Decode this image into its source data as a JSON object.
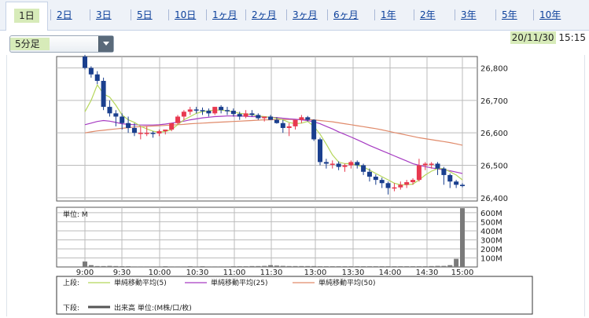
{
  "tabs": {
    "items": [
      "1日",
      "2日",
      "3日",
      "5日",
      "10日",
      "1ヶ月",
      "2ヶ月",
      "3ヶ月",
      "6ヶ月",
      "1年",
      "2年",
      "3年",
      "5年",
      "10年"
    ],
    "active_index": 0
  },
  "interval_select": {
    "value": "5分足"
  },
  "timestamp": {
    "date": "20/11/30",
    "time": "15:15"
  },
  "colors": {
    "up": "#e8394f",
    "down": "#1a3f8e",
    "ma5": "#b5d65a",
    "ma25": "#a63bc2",
    "ma50": "#e08a6a",
    "volume": "#7a7a7a"
  },
  "chart_data": [
    {
      "type": "candlestick",
      "title": "",
      "x": [
        "9:00",
        "9:05",
        "9:10",
        "9:15",
        "9:20",
        "9:25",
        "9:30",
        "9:35",
        "9:40",
        "9:45",
        "9:50",
        "9:55",
        "10:00",
        "10:05",
        "10:10",
        "10:15",
        "10:20",
        "10:25",
        "10:30",
        "10:35",
        "10:40",
        "10:45",
        "10:50",
        "10:55",
        "11:00",
        "11:05",
        "11:10",
        "11:15",
        "11:20",
        "11:25",
        "11:30",
        "12:30",
        "12:35",
        "12:40",
        "12:45",
        "12:50",
        "12:55",
        "13:00",
        "13:05",
        "13:10",
        "13:15",
        "13:20",
        "13:25",
        "13:30",
        "13:35",
        "13:40",
        "13:45",
        "13:50",
        "13:55",
        "14:00",
        "14:05",
        "14:10",
        "14:15",
        "14:20",
        "14:25",
        "14:30",
        "14:35",
        "14:40",
        "14:45",
        "14:50",
        "14:55",
        "15:00"
      ],
      "x_ticks": [
        "9:00",
        "9:30",
        "10:00",
        "10:30",
        "11:00",
        "11:30",
        "13:00",
        "13:30",
        "14:00",
        "14:30",
        "15:00"
      ],
      "y_ticks": [
        "26,400",
        "26,500",
        "26,600",
        "26,700",
        "26,800"
      ],
      "ylim": [
        26390,
        26835
      ],
      "open": [
        26835,
        26800,
        26780,
        26760,
        26680,
        26660,
        26650,
        26630,
        26615,
        26600,
        26600,
        26600,
        26598,
        26605,
        26610,
        26630,
        26650,
        26665,
        26672,
        26670,
        26668,
        26660,
        26680,
        26670,
        26668,
        26658,
        26650,
        26660,
        26655,
        26645,
        26650,
        26640,
        26630,
        26615,
        26620,
        26640,
        26648,
        26640,
        26580,
        26510,
        26505,
        26505,
        26495,
        26500,
        26510,
        26500,
        26480,
        26465,
        26455,
        26445,
        26430,
        26432,
        26440,
        26448,
        26455,
        26500,
        26505,
        26505,
        26490,
        26470,
        26450,
        26440
      ],
      "high": [
        26840,
        26805,
        26790,
        26770,
        26700,
        26670,
        26660,
        26650,
        26630,
        26620,
        26620,
        26605,
        26610,
        26610,
        26630,
        26655,
        26670,
        26680,
        26680,
        26678,
        26675,
        26680,
        26685,
        26680,
        26675,
        26665,
        26670,
        26670,
        26660,
        26650,
        26655,
        26648,
        26640,
        26630,
        26640,
        26655,
        26652,
        26642,
        26585,
        26520,
        26515,
        26512,
        26505,
        26515,
        26515,
        26505,
        26490,
        26472,
        26462,
        26450,
        26445,
        26450,
        26455,
        26460,
        26520,
        26510,
        26510,
        26510,
        26495,
        26475,
        26455,
        26445
      ],
      "low": [
        26795,
        26770,
        26750,
        26670,
        26650,
        26620,
        26610,
        26600,
        26590,
        26580,
        26590,
        26585,
        26590,
        26595,
        26605,
        26625,
        26640,
        26655,
        26660,
        26655,
        26650,
        26655,
        26660,
        26655,
        26650,
        26640,
        26645,
        26650,
        26640,
        26635,
        26640,
        26628,
        26600,
        26590,
        26610,
        26630,
        26635,
        26575,
        26500,
        26490,
        26490,
        26485,
        26480,
        26490,
        26490,
        26470,
        26450,
        26440,
        26430,
        26410,
        26420,
        26425,
        26430,
        26440,
        26450,
        26485,
        26490,
        26470,
        26440,
        26430,
        26430,
        26432
      ],
      "close": [
        26800,
        26780,
        26760,
        26680,
        26660,
        26650,
        26630,
        26615,
        26600,
        26600,
        26600,
        26598,
        26605,
        26610,
        26630,
        26650,
        26665,
        26672,
        26670,
        26668,
        26660,
        26680,
        26670,
        26668,
        26658,
        26650,
        26660,
        26655,
        26645,
        26650,
        26640,
        26630,
        26615,
        26620,
        26640,
        26648,
        26640,
        26580,
        26510,
        26505,
        26505,
        26495,
        26500,
        26510,
        26500,
        26480,
        26465,
        26455,
        26445,
        26430,
        26432,
        26440,
        26448,
        26455,
        26500,
        26505,
        26505,
        26490,
        26470,
        26450,
        26440,
        26436
      ],
      "ma5": [
        26665,
        26700,
        26748,
        26720,
        26710,
        26685,
        26655,
        26640,
        26632,
        26620,
        26612,
        26605,
        26602,
        26604,
        26610,
        26625,
        26640,
        26650,
        26660,
        26665,
        26668,
        26670,
        26670,
        26668,
        26665,
        26660,
        26658,
        26656,
        26652,
        26650,
        26648,
        26645,
        26640,
        26632,
        26628,
        26630,
        26635,
        26620,
        26596,
        26565,
        26532,
        26510,
        26505,
        26505,
        26500,
        26495,
        26485,
        26475,
        26465,
        26455,
        26445,
        26440,
        26440,
        26442,
        26455,
        26470,
        26482,
        26490,
        26490,
        26480,
        26470,
        26455
      ],
      "ma25": [
        26625,
        26630,
        26635,
        26638,
        26636,
        26632,
        26628,
        26626,
        26625,
        26624,
        26624,
        26624,
        26625,
        26627,
        26630,
        26633,
        26636,
        26640,
        26643,
        26646,
        26648,
        26650,
        26651,
        26652,
        26652,
        26652,
        26651,
        26650,
        26650,
        26649,
        26648,
        26647,
        26645,
        26643,
        26642,
        26640,
        26638,
        26634,
        26628,
        26620,
        26612,
        26603,
        26595,
        26587,
        26579,
        26570,
        26561,
        26553,
        26545,
        26537,
        26529,
        26521,
        26513,
        26505,
        26500,
        26496,
        26492,
        26489,
        26486,
        26483,
        26479,
        26475
      ],
      "ma50": [
        26600,
        26603,
        26606,
        26608,
        26610,
        26612,
        26614,
        26616,
        26618,
        26619,
        26620,
        26621,
        26622,
        26623,
        26624,
        26625,
        26626,
        26628,
        26629,
        26630,
        26631,
        26632,
        26633,
        26634,
        26635,
        26636,
        26637,
        26638,
        26639,
        26640,
        26640,
        26641,
        26641,
        26641,
        26641,
        26641,
        26641,
        26640,
        26638,
        26636,
        26634,
        26631,
        26628,
        26625,
        26622,
        26619,
        26616,
        26613,
        26609,
        26605,
        26601,
        26597,
        26593,
        26589,
        26585,
        26582,
        26579,
        26576,
        26573,
        26570,
        26566,
        26562
      ]
    },
    {
      "type": "bar",
      "title": "単位: M",
      "y_ticks": [
        "100M",
        "200M",
        "300M",
        "400M",
        "500M",
        "600M"
      ],
      "ylim": [
        0,
        660
      ],
      "values": [
        60,
        20,
        10,
        10,
        12,
        10,
        8,
        8,
        6,
        6,
        6,
        6,
        6,
        8,
        6,
        6,
        6,
        8,
        6,
        8,
        6,
        6,
        6,
        6,
        8,
        8,
        8,
        10,
        10,
        12,
        20,
        15,
        12,
        10,
        10,
        10,
        10,
        10,
        8,
        8,
        8,
        8,
        8,
        8,
        8,
        8,
        8,
        8,
        8,
        8,
        8,
        8,
        8,
        8,
        8,
        8,
        10,
        12,
        12,
        20,
        90,
        650
      ]
    }
  ],
  "legend": {
    "upper_label": "上段:",
    "ma5_label": "単純移動平均(5)",
    "ma25_label": "単純移動平均(25)",
    "ma50_label": "単純移動平均(50)",
    "lower_label": "下段:",
    "volume_label": "出来高 単位:(M株/口/枚)"
  }
}
